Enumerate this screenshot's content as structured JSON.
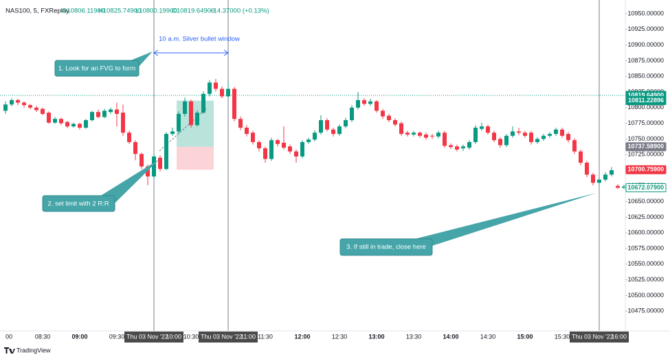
{
  "chart_data": {
    "type": "candlestick",
    "header": {
      "symbol": "NAS100, 5, FXReplay",
      "open": "O10806.11900",
      "high": "H10825.74900",
      "low": "L10800.19900",
      "close": "C10819.64900",
      "change": "+14.37000 (+0.13%)"
    },
    "categories": [
      "00",
      null,
      null,
      null,
      null,
      null,
      "08:30",
      null,
      null,
      null,
      null,
      null,
      "09:00",
      null,
      null,
      null,
      null,
      null,
      "09:30",
      null,
      null,
      null,
      null,
      null,
      "10:00",
      null,
      null,
      null,
      null,
      null,
      "10:30",
      null,
      null,
      null,
      null,
      null,
      "11:00",
      null,
      null,
      null,
      null,
      null,
      "11:30",
      null,
      null,
      null,
      null,
      null,
      "12:00",
      null,
      null,
      null,
      null,
      null,
      "12:30",
      null,
      null,
      null,
      null,
      null,
      "13:00",
      null,
      null,
      null,
      null,
      null,
      "13:30",
      null,
      null,
      null,
      null,
      null,
      "14:00",
      null,
      null,
      null,
      null,
      null,
      "14:30",
      null,
      null,
      null,
      null,
      null,
      "15:00",
      null,
      null,
      null,
      null,
      null,
      "15:30",
      null,
      null,
      null,
      null,
      null,
      "16:00",
      null,
      null,
      null,
      null
    ],
    "highlighted_categories": [
      "10:00",
      "11:00",
      "16:00"
    ],
    "date_label": "Thu 03 Nov '22",
    "open": [
      10795,
      10805,
      10812,
      10808,
      10804,
      10800,
      10798,
      10792,
      10776,
      10782,
      10777,
      10770,
      10774,
      10768,
      10780,
      10793,
      10785,
      10793,
      10797,
      10792,
      10760,
      10745,
      10726,
      10706,
      10690,
      10720,
      10702,
      10758,
      10762,
      10790,
      10810,
      10772,
      10792,
      10822,
      10840,
      10830,
      10818,
      10830,
      10782,
      10768,
      10760,
      10745,
      10735,
      10718,
      10748,
      10744,
      10738,
      10730,
      10722,
      10745,
      10749,
      10760,
      10780,
      10765,
      10758,
      10770,
      10780,
      10800,
      10812,
      10806,
      10810,
      10795,
      10787,
      10780,
      10775,
      10760,
      10757,
      10760,
      10757,
      10755,
      10754,
      10760,
      10740,
      10738,
      10735,
      10736,
      10745,
      10766,
      10770,
      10760,
      10750,
      10740,
      10755,
      10762,
      10760,
      10760,
      10745,
      10750,
      10755,
      10758,
      10765,
      10758,
      10748,
      10730,
      10712,
      10693,
      10680,
      10685,
      10693,
      10675,
      10672
    ],
    "high": [
      10810,
      10815,
      10814,
      10810,
      10806,
      10803,
      10800,
      10794,
      10785,
      10784,
      10779,
      10776,
      10776,
      10782,
      10795,
      10797,
      10798,
      10800,
      10808,
      10805,
      10763,
      10748,
      10728,
      10709,
      10727,
      10724,
      10761,
      10768,
      10794,
      10816,
      10813,
      10796,
      10826,
      10844,
      10846,
      10834,
      10842,
      10833,
      10786,
      10772,
      10763,
      10748,
      10738,
      10752,
      10750,
      10770,
      10741,
      10733,
      10748,
      10752,
      10764,
      10788,
      10783,
      10768,
      10773,
      10784,
      10804,
      10825,
      10815,
      10814,
      10812,
      10798,
      10790,
      10783,
      10778,
      10763,
      10763,
      10762,
      10760,
      10758,
      10763,
      10763,
      10743,
      10741,
      10741,
      10748,
      10772,
      10776,
      10773,
      10763,
      10753,
      10758,
      10770,
      10768,
      10763,
      10763,
      10753,
      10758,
      10761,
      10768,
      10768,
      10761,
      10751,
      10733,
      10715,
      10696,
      10689,
      10697,
      10705,
      10678,
      10677
    ],
    "low": [
      10790,
      10802,
      10804,
      10800,
      10797,
      10793,
      10788,
      10774,
      10774,
      10772,
      10767,
      10768,
      10765,
      10766,
      10778,
      10783,
      10783,
      10790,
      10770,
      10755,
      10742,
      10716,
      10702,
      10676,
      10686,
      10698,
      10700,
      10755,
      10758,
      10786,
      10768,
      10770,
      10790,
      10818,
      10826,
      10815,
      10815,
      10778,
      10764,
      10754,
      10741,
      10730,
      10712,
      10715,
      10738,
      10733,
      10726,
      10712,
      10719,
      10742,
      10746,
      10757,
      10762,
      10754,
      10755,
      10767,
      10777,
      10797,
      10803,
      10803,
      10792,
      10782,
      10777,
      10770,
      10755,
      10754,
      10754,
      10752,
      10749,
      10750,
      10751,
      10736,
      10734,
      10730,
      10731,
      10733,
      10742,
      10763,
      10757,
      10745,
      10736,
      10737,
      10752,
      10756,
      10752,
      10741,
      10742,
      10747,
      10752,
      10755,
      10752,
      10744,
      10726,
      10708,
      10689,
      10676,
      10677,
      10682,
      10690,
      10670,
      10670
    ],
    "close": [
      10805,
      10812,
      10808,
      10804,
      10800,
      10796,
      10790,
      10776,
      10782,
      10775,
      10770,
      10774,
      10768,
      10780,
      10793,
      10785,
      10795,
      10797,
      10790,
      10760,
      10745,
      10726,
      10706,
      10690,
      10722,
      10702,
      10758,
      10762,
      10790,
      10810,
      10772,
      10792,
      10822,
      10840,
      10830,
      10818,
      10830,
      10782,
      10768,
      10758,
      10745,
      10735,
      10718,
      10748,
      10742,
      10736,
      10730,
      10722,
      10745,
      10749,
      10760,
      10780,
      10765,
      10758,
      10770,
      10780,
      10800,
      10812,
      10806,
      10810,
      10795,
      10786,
      10780,
      10773,
      10758,
      10757,
      10760,
      10755,
      10752,
      10754,
      10760,
      10739,
      10737,
      10733,
      10738,
      10745,
      10768,
      10770,
      10760,
      10748,
      10740,
      10755,
      10762,
      10760,
      10755,
      10745,
      10750,
      10755,
      10758,
      10765,
      10755,
      10748,
      10730,
      10712,
      10693,
      10680,
      10685,
      10693,
      10700,
      10672,
      10674
    ],
    "up_color": "#089981",
    "down_color": "#f23645",
    "ylim": [
      10950,
      10450
    ],
    "yticks": [
      {
        "value": 10950,
        "label": "10950.00000"
      },
      {
        "value": 10925,
        "label": "10925.00000"
      },
      {
        "value": 10900,
        "label": "10900.00000"
      },
      {
        "value": 10875,
        "label": "10875.00000"
      },
      {
        "value": 10850,
        "label": "10850.00000"
      },
      {
        "value": 10825,
        "label": "10825.00000"
      },
      {
        "value": 10800,
        "label": "10800.00000"
      },
      {
        "value": 10775,
        "label": "10775.00000"
      },
      {
        "value": 10750,
        "label": "10750.00000"
      },
      {
        "value": 10725,
        "label": "10725.00000"
      },
      {
        "value": 10700,
        "label": "10700.00000"
      },
      {
        "value": 10675,
        "label": "10675.00000"
      },
      {
        "value": 10650,
        "label": "10650.00000"
      },
      {
        "value": 10625,
        "label": "10625.00000"
      },
      {
        "value": 10600,
        "label": "10600.00000"
      },
      {
        "value": 10575,
        "label": "10575.00000"
      },
      {
        "value": 10550,
        "label": "10550.00000"
      },
      {
        "value": 10525,
        "label": "10525.00000"
      },
      {
        "value": 10500,
        "label": "10500.00000"
      },
      {
        "value": 10475,
        "label": "10475.00000"
      }
    ],
    "grid": false,
    "price_labels": [
      {
        "value": 10819.649,
        "label": "10819.64900",
        "color": "#089981"
      },
      {
        "value": 10811.22896,
        "label": "10811.22896",
        "color": "#089981"
      },
      {
        "value": 10737.589,
        "label": "10737.58900",
        "color": "#787b86"
      },
      {
        "value": 10700.759,
        "label": "10700.75900",
        "color": "#f23645"
      },
      {
        "value": 10672.079,
        "label": "10672.07900",
        "color": "#089981",
        "outline": true
      }
    ],
    "annotations": {
      "window": "10 a.m. Silver bullet window",
      "callout_1": "1. Look for an FVG to form",
      "callout_2": "2. set limit with 2 R:R",
      "callout_3": "3. If still in trade, close here"
    },
    "footer": "TradingView"
  }
}
